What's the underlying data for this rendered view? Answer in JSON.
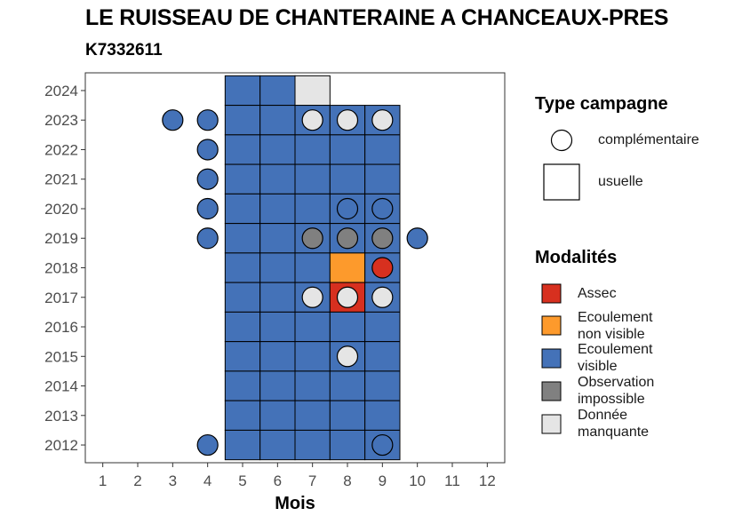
{
  "chart_data": {
    "type": "heatmap",
    "title": "LE RUISSEAU DE CHANTERAINE A CHANCEAUX-PRES",
    "subtitle": "K7332611",
    "xlabel": "Mois",
    "ylabel": "",
    "x_ticks": [
      "1",
      "2",
      "3",
      "4",
      "5",
      "6",
      "7",
      "8",
      "9",
      "10",
      "11",
      "12"
    ],
    "y_ticks": [
      "2012",
      "2013",
      "2014",
      "2015",
      "2016",
      "2017",
      "2018",
      "2019",
      "2020",
      "2021",
      "2022",
      "2023",
      "2024"
    ],
    "xlim": [
      0.5,
      12.5
    ],
    "ylim": [
      2011.4,
      2024.6
    ],
    "grid": false,
    "legend_position": "right",
    "colors": {
      "Assec": "#d7301f",
      "Ecoulement non visible": "#fd9a2c",
      "Ecoulement visible": "#4472b8",
      "Observation impossible": "#808080",
      "Donnée manquante": "#e5e5e5"
    },
    "legend": {
      "type_title": "Type campagne",
      "type_items": [
        {
          "label": "complémentaire",
          "shape": "circle"
        },
        {
          "label": "usuelle",
          "shape": "square"
        }
      ],
      "modalites_title": "Modalités",
      "modalites_items": [
        {
          "label": "Assec",
          "lines": [
            "Assec"
          ],
          "color": "#d7301f"
        },
        {
          "label": "Ecoulement non visible",
          "lines": [
            "Ecoulement",
            "non visible"
          ],
          "color": "#fd9a2c"
        },
        {
          "label": "Ecoulement visible",
          "lines": [
            "Ecoulement",
            "visible"
          ],
          "color": "#4472b8"
        },
        {
          "label": "Observation impossible",
          "lines": [
            "Observation",
            "impossible"
          ],
          "color": "#808080"
        },
        {
          "label": "Donnée manquante",
          "lines": [
            "Donnée",
            "manquante"
          ],
          "color": "#e5e5e5"
        }
      ]
    },
    "usuelle": [
      {
        "year": 2024,
        "month": 5,
        "modalite": "Ecoulement visible"
      },
      {
        "year": 2024,
        "month": 6,
        "modalite": "Ecoulement visible"
      },
      {
        "year": 2024,
        "month": 7,
        "modalite": "Donnée manquante"
      },
      {
        "year": 2023,
        "month": 5,
        "modalite": "Ecoulement visible"
      },
      {
        "year": 2023,
        "month": 6,
        "modalite": "Ecoulement visible"
      },
      {
        "year": 2023,
        "month": 7,
        "modalite": "Ecoulement visible"
      },
      {
        "year": 2023,
        "month": 8,
        "modalite": "Ecoulement visible"
      },
      {
        "year": 2023,
        "month": 9,
        "modalite": "Ecoulement visible"
      },
      {
        "year": 2022,
        "month": 5,
        "modalite": "Ecoulement visible"
      },
      {
        "year": 2022,
        "month": 6,
        "modalite": "Ecoulement visible"
      },
      {
        "year": 2022,
        "month": 7,
        "modalite": "Ecoulement visible"
      },
      {
        "year": 2022,
        "month": 8,
        "modalite": "Ecoulement visible"
      },
      {
        "year": 2022,
        "month": 9,
        "modalite": "Ecoulement visible"
      },
      {
        "year": 2021,
        "month": 5,
        "modalite": "Ecoulement visible"
      },
      {
        "year": 2021,
        "month": 6,
        "modalite": "Ecoulement visible"
      },
      {
        "year": 2021,
        "month": 7,
        "modalite": "Ecoulement visible"
      },
      {
        "year": 2021,
        "month": 8,
        "modalite": "Ecoulement visible"
      },
      {
        "year": 2021,
        "month": 9,
        "modalite": "Ecoulement visible"
      },
      {
        "year": 2020,
        "month": 5,
        "modalite": "Ecoulement visible"
      },
      {
        "year": 2020,
        "month": 6,
        "modalite": "Ecoulement visible"
      },
      {
        "year": 2020,
        "month": 7,
        "modalite": "Ecoulement visible"
      },
      {
        "year": 2020,
        "month": 8,
        "modalite": "Ecoulement visible"
      },
      {
        "year": 2020,
        "month": 9,
        "modalite": "Ecoulement visible"
      },
      {
        "year": 2019,
        "month": 5,
        "modalite": "Ecoulement visible"
      },
      {
        "year": 2019,
        "month": 6,
        "modalite": "Ecoulement visible"
      },
      {
        "year": 2019,
        "month": 7,
        "modalite": "Ecoulement visible"
      },
      {
        "year": 2019,
        "month": 8,
        "modalite": "Ecoulement visible"
      },
      {
        "year": 2019,
        "month": 9,
        "modalite": "Ecoulement visible"
      },
      {
        "year": 2018,
        "month": 5,
        "modalite": "Ecoulement visible"
      },
      {
        "year": 2018,
        "month": 6,
        "modalite": "Ecoulement visible"
      },
      {
        "year": 2018,
        "month": 7,
        "modalite": "Ecoulement visible"
      },
      {
        "year": 2018,
        "month": 8,
        "modalite": "Ecoulement non visible"
      },
      {
        "year": 2018,
        "month": 9,
        "modalite": "Ecoulement visible"
      },
      {
        "year": 2017,
        "month": 5,
        "modalite": "Ecoulement visible"
      },
      {
        "year": 2017,
        "month": 6,
        "modalite": "Ecoulement visible"
      },
      {
        "year": 2017,
        "month": 7,
        "modalite": "Ecoulement visible"
      },
      {
        "year": 2017,
        "month": 8,
        "modalite": "Assec"
      },
      {
        "year": 2017,
        "month": 9,
        "modalite": "Ecoulement visible"
      },
      {
        "year": 2016,
        "month": 5,
        "modalite": "Ecoulement visible"
      },
      {
        "year": 2016,
        "month": 6,
        "modalite": "Ecoulement visible"
      },
      {
        "year": 2016,
        "month": 7,
        "modalite": "Ecoulement visible"
      },
      {
        "year": 2016,
        "month": 8,
        "modalite": "Ecoulement visible"
      },
      {
        "year": 2016,
        "month": 9,
        "modalite": "Ecoulement visible"
      },
      {
        "year": 2015,
        "month": 5,
        "modalite": "Ecoulement visible"
      },
      {
        "year": 2015,
        "month": 6,
        "modalite": "Ecoulement visible"
      },
      {
        "year": 2015,
        "month": 7,
        "modalite": "Ecoulement visible"
      },
      {
        "year": 2015,
        "month": 8,
        "modalite": "Ecoulement visible"
      },
      {
        "year": 2015,
        "month": 9,
        "modalite": "Ecoulement visible"
      },
      {
        "year": 2014,
        "month": 5,
        "modalite": "Ecoulement visible"
      },
      {
        "year": 2014,
        "month": 6,
        "modalite": "Ecoulement visible"
      },
      {
        "year": 2014,
        "month": 7,
        "modalite": "Ecoulement visible"
      },
      {
        "year": 2014,
        "month": 8,
        "modalite": "Ecoulement visible"
      },
      {
        "year": 2014,
        "month": 9,
        "modalite": "Ecoulement visible"
      },
      {
        "year": 2013,
        "month": 5,
        "modalite": "Ecoulement visible"
      },
      {
        "year": 2013,
        "month": 6,
        "modalite": "Ecoulement visible"
      },
      {
        "year": 2013,
        "month": 7,
        "modalite": "Ecoulement visible"
      },
      {
        "year": 2013,
        "month": 8,
        "modalite": "Ecoulement visible"
      },
      {
        "year": 2013,
        "month": 9,
        "modalite": "Ecoulement visible"
      },
      {
        "year": 2012,
        "month": 5,
        "modalite": "Ecoulement visible"
      },
      {
        "year": 2012,
        "month": 6,
        "modalite": "Ecoulement visible"
      },
      {
        "year": 2012,
        "month": 7,
        "modalite": "Ecoulement visible"
      },
      {
        "year": 2012,
        "month": 8,
        "modalite": "Ecoulement visible"
      },
      {
        "year": 2012,
        "month": 9,
        "modalite": "Ecoulement visible"
      }
    ],
    "complementaire": [
      {
        "year": 2023,
        "month": 3,
        "modalite": "Ecoulement visible"
      },
      {
        "year": 2023,
        "month": 4,
        "modalite": "Ecoulement visible"
      },
      {
        "year": 2023,
        "month": 7,
        "modalite": "Donnée manquante"
      },
      {
        "year": 2023,
        "month": 8,
        "modalite": "Donnée manquante"
      },
      {
        "year": 2023,
        "month": 9,
        "modalite": "Donnée manquante"
      },
      {
        "year": 2022,
        "month": 4,
        "modalite": "Ecoulement visible"
      },
      {
        "year": 2021,
        "month": 4,
        "modalite": "Ecoulement visible"
      },
      {
        "year": 2020,
        "month": 4,
        "modalite": "Ecoulement visible"
      },
      {
        "year": 2020,
        "month": 8,
        "modalite": "Ecoulement visible"
      },
      {
        "year": 2020,
        "month": 9,
        "modalite": "Ecoulement visible"
      },
      {
        "year": 2019,
        "month": 4,
        "modalite": "Ecoulement visible"
      },
      {
        "year": 2019,
        "month": 7,
        "modalite": "Observation impossible"
      },
      {
        "year": 2019,
        "month": 8,
        "modalite": "Observation impossible"
      },
      {
        "year": 2019,
        "month": 9,
        "modalite": "Observation impossible"
      },
      {
        "year": 2019,
        "month": 10,
        "modalite": "Ecoulement visible"
      },
      {
        "year": 2018,
        "month": 9,
        "modalite": "Assec"
      },
      {
        "year": 2017,
        "month": 7,
        "modalite": "Donnée manquante"
      },
      {
        "year": 2017,
        "month": 8,
        "modalite": "Donnée manquante"
      },
      {
        "year": 2017,
        "month": 9,
        "modalite": "Donnée manquante"
      },
      {
        "year": 2015,
        "month": 8,
        "modalite": "Donnée manquante"
      },
      {
        "year": 2012,
        "month": 4,
        "modalite": "Ecoulement visible"
      },
      {
        "year": 2012,
        "month": 9,
        "modalite": "Ecoulement visible"
      }
    ]
  }
}
